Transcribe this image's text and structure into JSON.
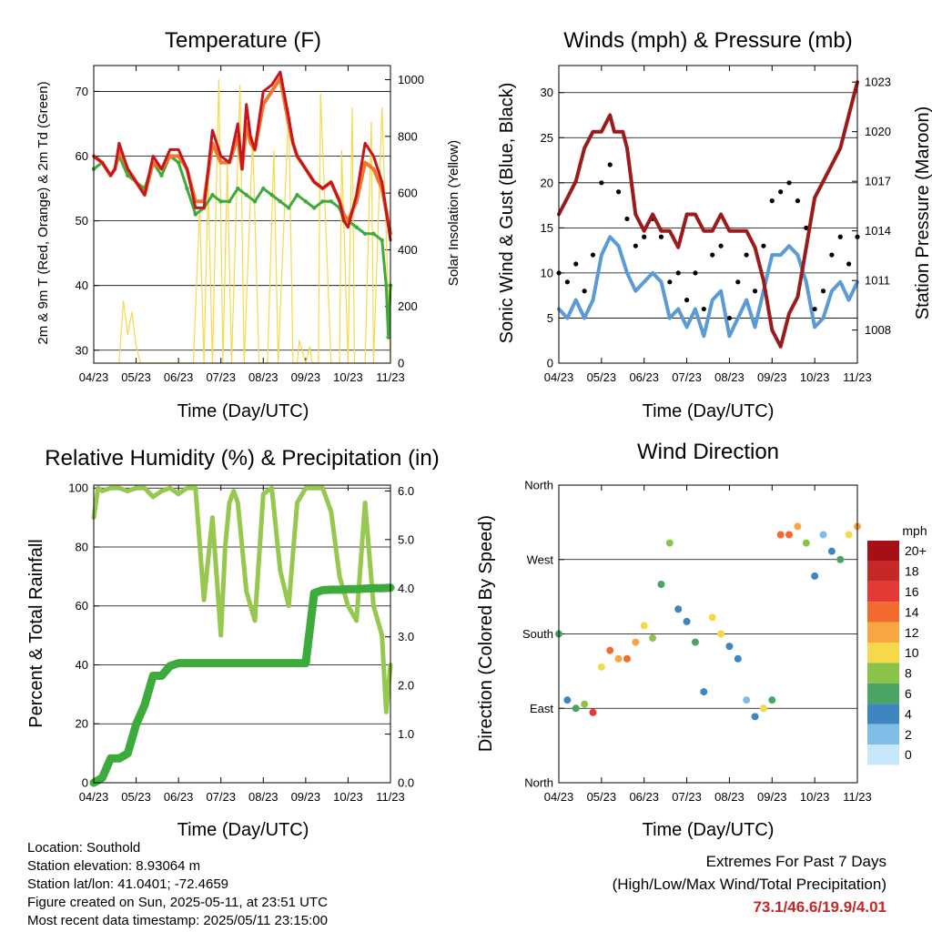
{
  "info": {
    "location": "Location: Southold",
    "elevation": "Station elevation: 8.93064 m",
    "latlon": "Station lat/lon: 41.0401; -72.4659",
    "created": "Figure created on Sun, 2025-05-11, at 23:51 UTC",
    "recent": "Most recent data timestamp: 2025/05/11 23:15:00"
  },
  "extremes": {
    "title": "Extremes For Past 7 Days",
    "subtitle": "(High/Low/Max Wind/Total Precipitation)",
    "values": "73.1/46.6/19.9/4.01"
  },
  "colors": {
    "temp_2m": "#c8141e",
    "temp_9m": "#f07828",
    "dewpoint": "#3cab3c",
    "solar": "#f5d94a",
    "wind": "#5b9bd5",
    "gust": "#000000",
    "pressure": "#9b1b1b",
    "rh": "#96c850",
    "precip": "#3cab3c"
  },
  "chart_data": [
    {
      "type": "line",
      "title": "Temperature (F)",
      "xlabel": "Time (Day/UTC)",
      "ylabel": "2m & 9m T (Red, Orange) & 2m Td (Green)",
      "y2label": "Solar Insolation (Yellow)",
      "x_ticks": [
        "04/23",
        "05/23",
        "06/23",
        "07/23",
        "08/23",
        "09/23",
        "10/23",
        "11/23"
      ],
      "y_ticks": [
        "30",
        "40",
        "50",
        "60",
        "70"
      ],
      "y2_ticks": [
        "0",
        "200",
        "400",
        "600",
        "800",
        "1000"
      ],
      "ylim": [
        28,
        74
      ],
      "y2lim": [
        0,
        1050
      ],
      "xlim": [
        0,
        7
      ],
      "grid": true,
      "series": [
        {
          "key": "t2m",
          "axis": "left",
          "x": [
            0,
            0.2,
            0.4,
            0.5,
            0.6,
            0.8,
            1.0,
            1.2,
            1.4,
            1.6,
            1.8,
            2.0,
            2.2,
            2.4,
            2.6,
            2.8,
            3.0,
            3.2,
            3.4,
            3.5,
            3.6,
            3.7,
            3.8,
            4.0,
            4.2,
            4.4,
            4.6,
            4.7,
            4.8,
            5.0,
            5.2,
            5.4,
            5.6,
            5.8,
            5.9,
            6.0,
            6.2,
            6.4,
            6.6,
            6.8,
            7.0
          ],
          "y": [
            60,
            59,
            57,
            58,
            62,
            58,
            56,
            54,
            60,
            58,
            61,
            61,
            58,
            52,
            52,
            64,
            60,
            59,
            65,
            58,
            68,
            63,
            61,
            70,
            71,
            73,
            66,
            62,
            60,
            58,
            56,
            55,
            56,
            53,
            50,
            49,
            54,
            62,
            60,
            56,
            47
          ]
        },
        {
          "key": "t9m",
          "axis": "left",
          "x": [
            0,
            0.2,
            0.4,
            0.5,
            0.6,
            0.8,
            1.0,
            1.2,
            1.4,
            1.6,
            1.8,
            2.0,
            2.2,
            2.4,
            2.6,
            2.8,
            3.0,
            3.2,
            3.4,
            3.5,
            3.6,
            3.7,
            3.8,
            4.0,
            4.2,
            4.4,
            4.6,
            4.7,
            4.8,
            5.0,
            5.2,
            5.4,
            5.6,
            5.8,
            5.9,
            6.0,
            6.2,
            6.4,
            6.6,
            6.8,
            7.0
          ],
          "y": [
            60,
            59,
            57,
            58,
            61,
            58,
            56,
            54,
            59,
            58,
            60,
            60,
            58,
            53,
            53,
            62,
            59,
            59,
            63,
            58,
            65,
            62,
            61,
            68,
            70,
            72,
            65,
            62,
            60,
            58,
            56,
            55,
            56,
            53,
            51,
            50,
            53,
            59,
            58,
            55,
            48
          ]
        },
        {
          "key": "td",
          "axis": "left",
          "x": [
            0,
            0.2,
            0.4,
            0.5,
            0.6,
            0.8,
            1.0,
            1.2,
            1.4,
            1.6,
            1.8,
            2.0,
            2.2,
            2.4,
            2.6,
            2.8,
            3.0,
            3.2,
            3.4,
            3.6,
            3.8,
            4.0,
            4.2,
            4.4,
            4.6,
            4.8,
            5.0,
            5.2,
            5.4,
            5.6,
            5.8,
            5.9,
            6.0,
            6.2,
            6.4,
            6.6,
            6.8,
            6.9,
            6.95,
            7.0
          ],
          "y": [
            58,
            59,
            57,
            58,
            60,
            57,
            56,
            55,
            59,
            57,
            60,
            59,
            55,
            51,
            52,
            54,
            53,
            53,
            55,
            54,
            53,
            55,
            54,
            53,
            52,
            54,
            53,
            52,
            53,
            53,
            52,
            50,
            50,
            49,
            48,
            48,
            47,
            40,
            32,
            40
          ]
        },
        {
          "key": "solar",
          "axis": "right",
          "x": [
            0.6,
            0.7,
            0.8,
            0.9,
            1.0,
            1.1,
            2.35,
            2.5,
            2.6,
            2.7,
            2.8,
            2.95,
            3.05,
            3.15,
            3.25,
            3.45,
            3.55,
            3.75,
            3.9,
            4.1,
            4.25,
            4.35,
            4.6,
            4.7,
            4.8,
            4.85,
            5.0,
            5.1,
            5.15,
            5.3,
            5.35,
            5.6,
            5.8,
            5.85,
            6.0,
            6.1,
            6.15,
            6.4,
            6.55,
            6.6,
            6.8,
            7.0
          ],
          "y": [
            0,
            220,
            100,
            180,
            60,
            0,
            0,
            550,
            0,
            640,
            0,
            1000,
            0,
            700,
            0,
            980,
            0,
            800,
            0,
            0,
            750,
            0,
            900,
            0,
            0,
            80,
            0,
            60,
            0,
            0,
            950,
            0,
            0,
            750,
            0,
            900,
            0,
            0,
            850,
            0,
            900,
            0
          ]
        }
      ]
    },
    {
      "type": "scatter",
      "title": "Winds (mph) & Pressure (mb)",
      "xlabel": "Time (Day/UTC)",
      "ylabel": "Sonic Wind & Gust (Blue, Black)",
      "y2label": "Station Pressure (Maroon)",
      "x_ticks": [
        "04/23",
        "05/23",
        "06/23",
        "07/23",
        "08/23",
        "09/23",
        "10/23",
        "11/23"
      ],
      "y_ticks": [
        "0",
        "5",
        "10",
        "15",
        "20",
        "25",
        "30"
      ],
      "y2_ticks": [
        "1008",
        "1011",
        "1014",
        "1017",
        "1020",
        "1023"
      ],
      "ylim": [
        0,
        33
      ],
      "y2lim": [
        1006,
        1024
      ],
      "xlim": [
        0,
        7
      ],
      "grid": true,
      "series": [
        {
          "key": "wind",
          "axis": "left",
          "x": [
            0,
            0.2,
            0.4,
            0.6,
            0.8,
            1.0,
            1.2,
            1.4,
            1.6,
            1.8,
            2.0,
            2.2,
            2.4,
            2.6,
            2.8,
            3.0,
            3.2,
            3.4,
            3.6,
            3.8,
            4.0,
            4.2,
            4.4,
            4.6,
            4.8,
            5.0,
            5.2,
            5.4,
            5.6,
            5.8,
            6.0,
            6.2,
            6.4,
            6.6,
            6.8,
            7.0
          ],
          "y": [
            6,
            5,
            7,
            5,
            7,
            12,
            14,
            13,
            10,
            8,
            9,
            10,
            9,
            5,
            6,
            4,
            6,
            3,
            7,
            8,
            3,
            5,
            7,
            4,
            8,
            12,
            12,
            13,
            12,
            9,
            4,
            5,
            8,
            9,
            7,
            9
          ]
        },
        {
          "key": "gust",
          "axis": "left",
          "x": [
            0,
            0.2,
            0.4,
            0.6,
            0.8,
            1.0,
            1.2,
            1.4,
            1.6,
            1.8,
            2.0,
            2.2,
            2.4,
            2.6,
            2.8,
            3.0,
            3.2,
            3.4,
            3.6,
            3.8,
            4.0,
            4.2,
            4.4,
            4.6,
            4.8,
            5.0,
            5.2,
            5.4,
            5.6,
            5.8,
            6.0,
            6.2,
            6.4,
            6.6,
            6.8,
            7.0
          ],
          "y": [
            10,
            9,
            11,
            8,
            12,
            20,
            22,
            19,
            16,
            13,
            14,
            16,
            14,
            9,
            10,
            7,
            10,
            6,
            12,
            13,
            5,
            9,
            12,
            8,
            13,
            18,
            19,
            20,
            18,
            15,
            6,
            8,
            12,
            14,
            11,
            14
          ]
        },
        {
          "key": "pressure",
          "axis": "right",
          "x": [
            0,
            0.2,
            0.4,
            0.6,
            0.8,
            1.0,
            1.2,
            1.3,
            1.5,
            1.6,
            1.8,
            2.0,
            2.2,
            2.4,
            2.6,
            2.8,
            3.0,
            3.2,
            3.4,
            3.6,
            3.8,
            4.0,
            4.2,
            4.4,
            4.6,
            4.8,
            5.0,
            5.2,
            5.4,
            5.6,
            5.8,
            6.0,
            6.2,
            6.4,
            6.6,
            6.8,
            7.0
          ],
          "y": [
            1015,
            1016,
            1017,
            1019,
            1020,
            1020,
            1021,
            1020,
            1020,
            1019,
            1015,
            1014,
            1015,
            1014,
            1014,
            1013,
            1015,
            1015,
            1014,
            1014,
            1015,
            1014,
            1014,
            1014,
            1013,
            1011,
            1008,
            1007,
            1009,
            1010,
            1013,
            1016,
            1017,
            1018,
            1019,
            1021,
            1023
          ]
        }
      ]
    },
    {
      "type": "line",
      "title": "Relative Humidity (%) & Precipitation (in)",
      "xlabel": "Time (Day/UTC)",
      "ylabel": "Percent & Total Rainfall",
      "x_ticks": [
        "04/23",
        "05/23",
        "06/23",
        "07/23",
        "08/23",
        "09/23",
        "10/23",
        "11/23"
      ],
      "y_ticks": [
        "0",
        "20",
        "40",
        "60",
        "80",
        "100"
      ],
      "y2_ticks": [
        "0.0",
        "1.0",
        "2.0",
        "3.0",
        "4.0",
        "5.0",
        "6.0"
      ],
      "ylim": [
        0,
        101
      ],
      "y2lim": [
        0,
        6.12
      ],
      "xlim": [
        0,
        7
      ],
      "grid": true,
      "series": [
        {
          "key": "rh",
          "axis": "left",
          "x": [
            0,
            0.1,
            0.2,
            0.4,
            0.6,
            0.8,
            1.0,
            1.2,
            1.4,
            1.6,
            1.8,
            2.0,
            2.2,
            2.4,
            2.6,
            2.8,
            2.9,
            3.0,
            3.1,
            3.2,
            3.3,
            3.4,
            3.6,
            3.8,
            4.0,
            4.2,
            4.4,
            4.6,
            4.8,
            5.0,
            5.2,
            5.4,
            5.6,
            5.8,
            6.0,
            6.2,
            6.4,
            6.6,
            6.8,
            6.9,
            7.0
          ],
          "y": [
            90,
            100,
            99,
            100,
            100,
            99,
            100,
            100,
            97,
            99,
            100,
            98,
            100,
            100,
            62,
            90,
            70,
            50,
            80,
            95,
            99,
            95,
            65,
            55,
            98,
            100,
            72,
            60,
            95,
            100,
            100,
            100,
            92,
            70,
            60,
            55,
            95,
            60,
            50,
            24,
            40
          ]
        },
        {
          "key": "precip",
          "axis": "right",
          "x": [
            0,
            0.2,
            0.4,
            0.6,
            0.8,
            1.0,
            1.2,
            1.4,
            1.6,
            1.8,
            2.0,
            2.2,
            2.4,
            2.6,
            2.8,
            3.0,
            3.2,
            3.4,
            3.6,
            3.8,
            4.0,
            4.2,
            4.4,
            4.6,
            4.8,
            5.0,
            5.2,
            5.4,
            5.6,
            5.8,
            6.0,
            6.2,
            6.4,
            6.6,
            6.8,
            7.0
          ],
          "y": [
            0,
            0.1,
            0.5,
            0.5,
            0.6,
            1.2,
            1.6,
            2.2,
            2.2,
            2.4,
            2.46,
            2.46,
            2.46,
            2.46,
            2.46,
            2.46,
            2.46,
            2.46,
            2.46,
            2.46,
            2.46,
            2.46,
            2.46,
            2.46,
            2.46,
            2.46,
            3.9,
            3.96,
            3.97,
            3.97,
            3.98,
            3.98,
            3.99,
            4.0,
            4.0,
            4.01
          ]
        }
      ]
    },
    {
      "type": "scatter",
      "title": "Wind Direction",
      "xlabel": "Time (Day/UTC)",
      "ylabel": "Direction (Colored By Speed)",
      "x_ticks": [
        "04/23",
        "05/23",
        "06/23",
        "07/23",
        "08/23",
        "09/23",
        "10/23",
        "11/23"
      ],
      "y_ticks": [
        "North",
        "East",
        "South",
        "West",
        "North"
      ],
      "ylim": [
        0,
        360
      ],
      "xlim": [
        0,
        7
      ],
      "grid": true,
      "colorbar": {
        "title": "mph",
        "labels": [
          "20+",
          "18",
          "16",
          "14",
          "12",
          "10",
          "8",
          "6",
          "4",
          "2",
          "0"
        ],
        "colors": [
          "#a50f15",
          "#c62828",
          "#e53935",
          "#f26b2e",
          "#f7a642",
          "#f5d94a",
          "#8bc34a",
          "#4aa564",
          "#3e86c0",
          "#7fbce6",
          "#c6e6fa"
        ]
      },
      "series": [
        {
          "key": "dir",
          "x": [
            0,
            0.2,
            0.4,
            0.6,
            0.8,
            1.0,
            1.2,
            1.4,
            1.6,
            1.8,
            2.0,
            2.2,
            2.4,
            2.6,
            2.8,
            3.0,
            3.2,
            3.4,
            3.6,
            3.8,
            4.0,
            4.2,
            4.4,
            4.6,
            4.8,
            5.0,
            5.2,
            5.4,
            5.6,
            5.8,
            6.0,
            6.2,
            6.4,
            6.6,
            6.8,
            7.0
          ],
          "y": [
            180,
            100,
            90,
            95,
            85,
            140,
            160,
            150,
            150,
            170,
            190,
            175,
            240,
            290,
            210,
            195,
            170,
            110,
            200,
            180,
            165,
            150,
            100,
            80,
            90,
            100,
            300,
            300,
            310,
            290,
            250,
            300,
            280,
            270,
            300,
            310
          ],
          "speed": [
            6,
            4,
            5,
            7,
            16,
            10,
            13,
            12,
            14,
            12,
            10,
            8,
            6,
            7,
            4,
            3,
            5,
            3,
            9,
            10,
            4,
            3,
            2,
            4,
            10,
            6,
            14,
            13,
            12,
            8,
            3,
            2,
            4,
            6,
            9,
            12
          ]
        }
      ]
    }
  ]
}
